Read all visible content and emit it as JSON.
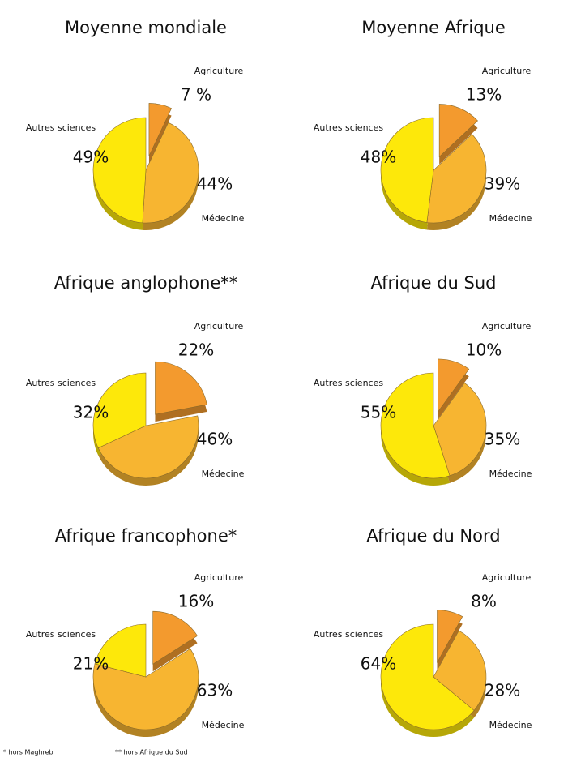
{
  "chart_data": [
    {
      "type": "pie",
      "title": "Moyenne mondiale",
      "categories": [
        "Agriculture",
        "Médecine",
        "Autres sciences"
      ],
      "values": [
        7,
        44,
        49
      ],
      "value_labels": [
        "7 %",
        "44%",
        "49%"
      ],
      "colors": [
        "#f39a2e",
        "#f7b531",
        "#fde80a"
      ]
    },
    {
      "type": "pie",
      "title": "Moyenne Afrique",
      "categories": [
        "Agriculture",
        "Médecine",
        "Autres sciences"
      ],
      "values": [
        13,
        39,
        48
      ],
      "value_labels": [
        "13%",
        "39%",
        "48%"
      ],
      "colors": [
        "#f39a2e",
        "#f7b531",
        "#fde80a"
      ]
    },
    {
      "type": "pie",
      "title": "Afrique anglophone**",
      "categories": [
        "Agriculture",
        "Médecine",
        "Autres sciences"
      ],
      "values": [
        22,
        46,
        32
      ],
      "value_labels": [
        "22%",
        "46%",
        "32%"
      ],
      "colors": [
        "#f39a2e",
        "#f7b531",
        "#fde80a"
      ]
    },
    {
      "type": "pie",
      "title": "Afrique du Sud",
      "categories": [
        "Agriculture",
        "Médecine",
        "Autres sciences"
      ],
      "values": [
        10,
        35,
        55
      ],
      "value_labels": [
        "10%",
        "35%",
        "55%"
      ],
      "colors": [
        "#f39a2e",
        "#f7b531",
        "#fde80a"
      ]
    },
    {
      "type": "pie",
      "title": "Afrique francophone*",
      "categories": [
        "Agriculture",
        "Médecine",
        "Autres sciences"
      ],
      "values": [
        16,
        63,
        21
      ],
      "value_labels": [
        "16%",
        "63%",
        "21%"
      ],
      "colors": [
        "#f39a2e",
        "#f7b531",
        "#fde80a"
      ]
    },
    {
      "type": "pie",
      "title": "Afrique du Nord",
      "categories": [
        "Agriculture",
        "Médecine",
        "Autres sciences"
      ],
      "values": [
        8,
        28,
        64
      ],
      "value_labels": [
        "8%",
        "28%",
        "64%"
      ],
      "colors": [
        "#f39a2e",
        "#f7b531",
        "#fde80a"
      ]
    }
  ],
  "footnotes": [
    "* hors Maghreb",
    "** hors Afrique du Sud"
  ]
}
